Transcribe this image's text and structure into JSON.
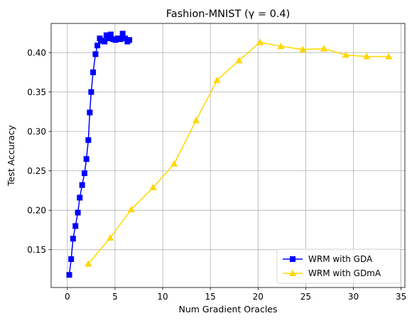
{
  "chart_data": {
    "type": "line",
    "title": "Fashion-MNIST (γ = 0.4)",
    "xlabel": "Num Gradient Oracles",
    "ylabel": "Test Accuracy",
    "xlim": [
      -1.7,
      35.4
    ],
    "ylim": [
      0.102,
      0.437
    ],
    "xticks": [
      0,
      5,
      10,
      15,
      20,
      25,
      30,
      35
    ],
    "xtick_labels": [
      "0",
      "5",
      "10",
      "15",
      "20",
      "25",
      "30",
      "35"
    ],
    "yticks": [
      0.15,
      0.2,
      0.25,
      0.3,
      0.35,
      0.4
    ],
    "ytick_labels": [
      "0.15",
      "0.20",
      "0.25",
      "0.30",
      "0.35",
      "0.40"
    ],
    "grid": true,
    "legend_position": "lower-right",
    "series": [
      {
        "name": "WRM with GDA",
        "color": "#0000ff",
        "marker": "square",
        "x": [
          0.2,
          0.4,
          0.6,
          0.85,
          1.1,
          1.3,
          1.55,
          1.8,
          2.0,
          2.2,
          2.35,
          2.5,
          2.7,
          2.95,
          3.15,
          3.4,
          3.6,
          3.9,
          4.1,
          4.3,
          4.55,
          4.8,
          5.05,
          5.3,
          5.55,
          5.8,
          6.05,
          6.3,
          6.5
        ],
        "y": [
          0.118,
          0.138,
          0.164,
          0.18,
          0.197,
          0.216,
          0.232,
          0.247,
          0.265,
          0.289,
          0.324,
          0.35,
          0.375,
          0.398,
          0.409,
          0.418,
          0.415,
          0.414,
          0.422,
          0.418,
          0.423,
          0.417,
          0.416,
          0.418,
          0.417,
          0.424,
          0.418,
          0.414,
          0.416
        ]
      },
      {
        "name": "WRM with GDmA",
        "color": "#ffd700",
        "marker": "triangle",
        "x": [
          2.2,
          4.5,
          6.7,
          9.0,
          11.2,
          13.5,
          15.7,
          18.0,
          20.2,
          22.4,
          24.7,
          26.9,
          29.2,
          31.4,
          33.7
        ],
        "y": [
          0.132,
          0.165,
          0.201,
          0.229,
          0.259,
          0.314,
          0.365,
          0.39,
          0.413,
          0.408,
          0.404,
          0.405,
          0.397,
          0.395,
          0.395
        ]
      }
    ]
  }
}
